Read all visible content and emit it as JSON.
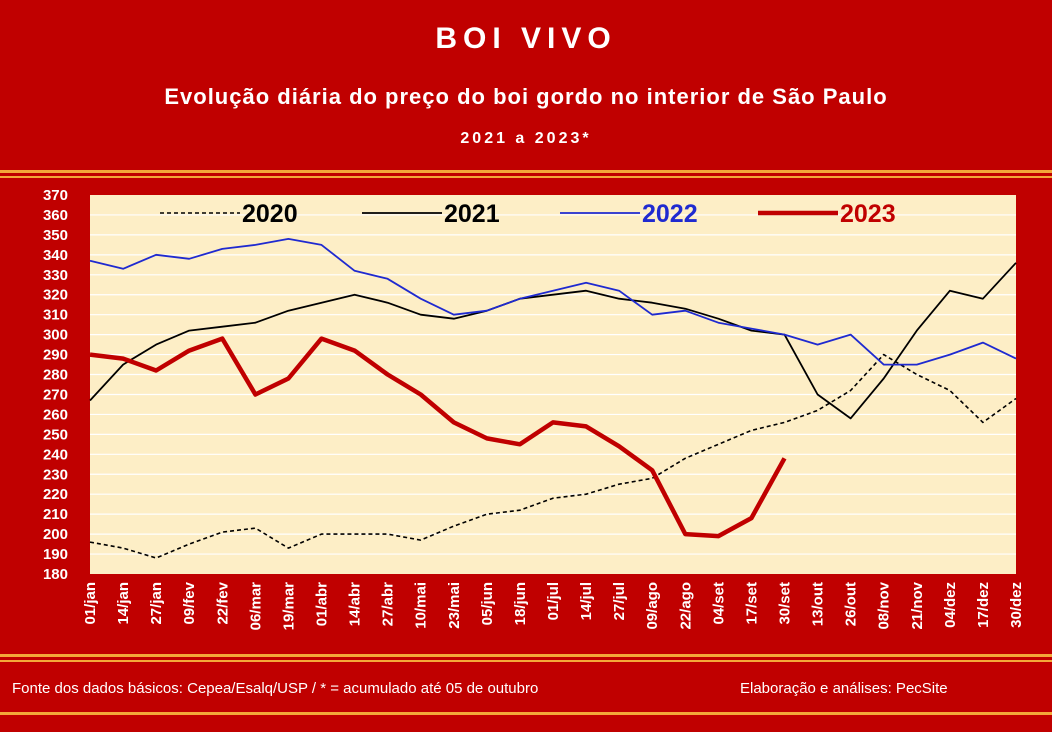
{
  "header": {
    "title": "BOI VIVO",
    "subtitle": "Evolução diária do preço do boi gordo no interior de São Paulo",
    "period": "2021 a 2023*"
  },
  "footer": {
    "source": "Fonte dos dados básicos: Cepea/Esalq/USP   /  * = acumulado até 05 de outubro",
    "author": "Elaboração e análises: PecSite"
  },
  "colors": {
    "frame": "#c00000",
    "plot_bg": "#fdeec6",
    "gridline": "#ffffff",
    "band_orange": "#f4a83a",
    "series_2020": "#000000",
    "series_2021": "#000000",
    "series_2022": "#1f2ad0",
    "series_2023": "#c00000"
  },
  "chart_data": {
    "type": "line",
    "title": "",
    "xlabel": "",
    "ylabel": "",
    "ylim": [
      180,
      370
    ],
    "y_ticks": [
      180,
      190,
      200,
      210,
      220,
      230,
      240,
      250,
      260,
      270,
      280,
      290,
      300,
      310,
      320,
      330,
      340,
      350,
      360,
      370
    ],
    "x_ticks": [
      "01/jan",
      "14/jan",
      "27/jan",
      "09/fev",
      "22/fev",
      "06/mar",
      "19/mar",
      "01/abr",
      "14/abr",
      "27/abr",
      "10/mai",
      "23/mai",
      "05/jun",
      "18/jun",
      "01/jul",
      "14/jul",
      "27/jul",
      "09/ago",
      "22/ago",
      "04/set",
      "17/set",
      "30/set",
      "13/out",
      "26/out",
      "08/nov",
      "21/nov",
      "04/dez",
      "17/dez",
      "30/dez"
    ],
    "grid": true,
    "legend_position": "top",
    "series": [
      {
        "name": "2020",
        "style": "dashed",
        "color": "#000000",
        "x": [
          "01/jan",
          "14/jan",
          "27/jan",
          "09/fev",
          "22/fev",
          "06/mar",
          "19/mar",
          "01/abr",
          "14/abr",
          "27/abr",
          "10/mai",
          "23/mai",
          "05/jun",
          "18/jun",
          "01/jul",
          "14/jul",
          "27/jul",
          "09/ago",
          "22/ago",
          "04/set",
          "17/set",
          "30/set",
          "13/out",
          "26/out",
          "08/nov",
          "21/nov",
          "04/dez",
          "17/dez",
          "30/dez"
        ],
        "values": [
          196,
          193,
          188,
          195,
          201,
          203,
          193,
          200,
          200,
          200,
          197,
          204,
          210,
          212,
          218,
          220,
          225,
          228,
          238,
          245,
          252,
          256,
          262,
          272,
          290,
          280,
          272,
          256,
          268
        ]
      },
      {
        "name": "2021",
        "style": "solid",
        "color": "#000000",
        "x": [
          "01/jan",
          "14/jan",
          "27/jan",
          "09/fev",
          "22/fev",
          "06/mar",
          "19/mar",
          "01/abr",
          "14/abr",
          "27/abr",
          "10/mai",
          "23/mai",
          "05/jun",
          "18/jun",
          "01/jul",
          "14/jul",
          "27/jul",
          "09/ago",
          "22/ago",
          "04/set",
          "17/set",
          "30/set",
          "13/out",
          "26/out",
          "08/nov",
          "21/nov",
          "04/dez",
          "17/dez",
          "30/dez"
        ],
        "values": [
          267,
          285,
          295,
          302,
          304,
          306,
          312,
          316,
          320,
          316,
          310,
          308,
          312,
          318,
          320,
          322,
          318,
          316,
          313,
          308,
          302,
          300,
          270,
          258,
          278,
          302,
          322,
          318,
          336
        ]
      },
      {
        "name": "2022",
        "style": "solid",
        "color": "#1f2ad0",
        "x": [
          "01/jan",
          "14/jan",
          "27/jan",
          "09/fev",
          "22/fev",
          "06/mar",
          "19/mar",
          "01/abr",
          "14/abr",
          "27/abr",
          "10/mai",
          "23/mai",
          "05/jun",
          "18/jun",
          "01/jul",
          "14/jul",
          "27/jul",
          "09/ago",
          "22/ago",
          "04/set",
          "17/set",
          "30/set",
          "13/out",
          "26/out",
          "08/nov",
          "21/nov",
          "04/dez",
          "17/dez",
          "30/dez"
        ],
        "values": [
          337,
          333,
          340,
          338,
          343,
          345,
          348,
          345,
          332,
          328,
          318,
          310,
          312,
          318,
          322,
          326,
          322,
          310,
          312,
          306,
          303,
          300,
          295,
          300,
          285,
          285,
          290,
          296,
          288
        ]
      },
      {
        "name": "2023",
        "style": "thick",
        "color": "#c00000",
        "x": [
          "01/jan",
          "14/jan",
          "27/jan",
          "09/fev",
          "22/fev",
          "06/mar",
          "19/mar",
          "01/abr",
          "14/abr",
          "27/abr",
          "10/mai",
          "23/mai",
          "05/jun",
          "18/jun",
          "01/jul",
          "14/jul",
          "27/jul",
          "09/ago",
          "22/ago",
          "04/set",
          "17/set",
          "30/set"
        ],
        "values": [
          290,
          288,
          282,
          292,
          298,
          270,
          278,
          298,
          292,
          280,
          270,
          256,
          248,
          245,
          256,
          254,
          244,
          232,
          200,
          199,
          208,
          238
        ]
      }
    ]
  }
}
